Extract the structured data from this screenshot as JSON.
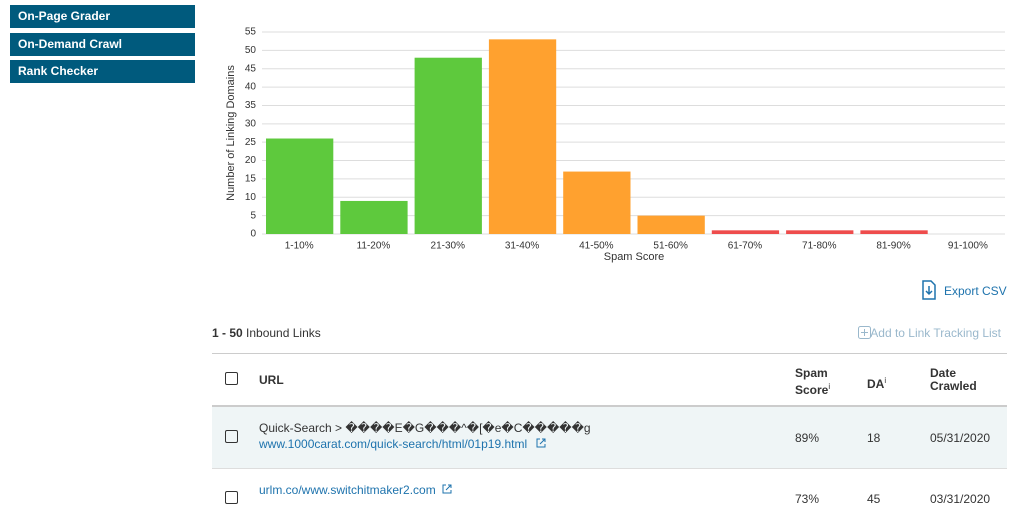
{
  "sidebar": {
    "items": [
      "On-Page Grader",
      "On-Demand Crawl",
      "Rank Checker"
    ]
  },
  "chart_data": {
    "type": "bar",
    "x_label": "Spam Score",
    "y_label": "Number of Linking Domains",
    "categories": [
      "1-10%",
      "11-20%",
      "21-30%",
      "31-40%",
      "41-50%",
      "51-60%",
      "61-70%",
      "71-80%",
      "81-90%",
      "91-100%"
    ],
    "values": [
      26,
      9,
      48,
      53,
      17,
      5,
      1,
      1,
      1,
      0
    ],
    "colors": [
      "#5ec93d",
      "#5ec93d",
      "#5ec93d",
      "#ffa12f",
      "#ffa12f",
      "#ffa12f",
      "#ee4c4c",
      "#ee4c4c",
      "#ee4c4c",
      "#ee4c4c"
    ],
    "ylim": [
      0,
      55
    ],
    "yticks": [
      0,
      5,
      10,
      15,
      20,
      25,
      30,
      35,
      40,
      45,
      50,
      55
    ],
    "grid": true
  },
  "export": "Export CSV",
  "list": {
    "range": "1 - 50",
    "label": "Inbound Links",
    "add": "Add to Link Tracking List"
  },
  "table": {
    "info": "i",
    "headers": [
      "URL",
      "Spam Score",
      "DA",
      "Date Crawled"
    ],
    "rows": [
      {
        "title": "Quick-Search > ����E�G���^�[�e�C�����g",
        "url": "www.1000carat.com/quick-search/html/01p19.html",
        "spam": "89%",
        "da": "18",
        "date": "05/31/2020"
      },
      {
        "title": "",
        "url": "urlm.co/www.switchitmaker2.com",
        "spam": "73%",
        "da": "45",
        "date": "03/31/2020"
      }
    ]
  }
}
